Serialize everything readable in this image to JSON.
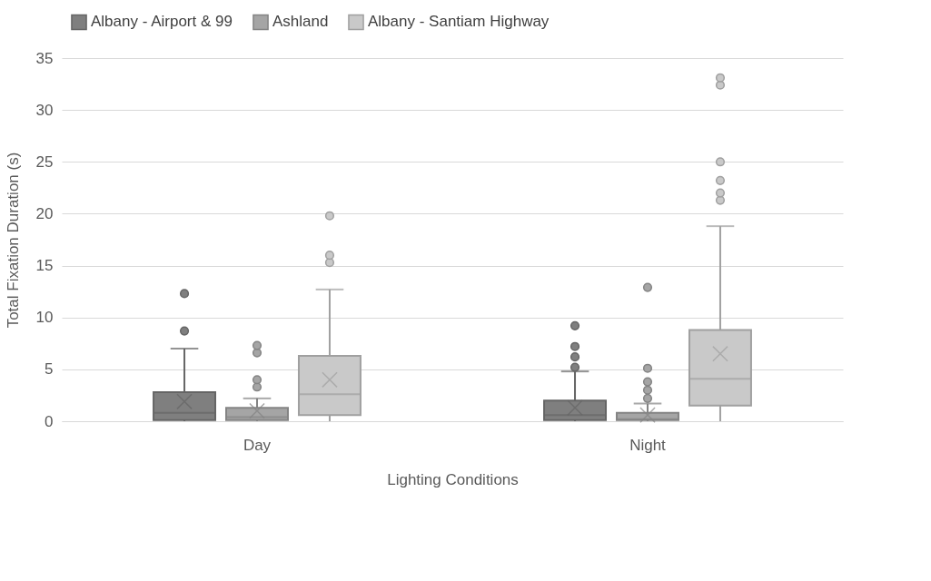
{
  "chart_data": {
    "type": "box",
    "xlabel": "Lighting Conditions",
    "ylabel": "Total Fixation Duration (s)",
    "categories": [
      "Day",
      "Night"
    ],
    "ylim": [
      0,
      35
    ],
    "yticks": [
      0,
      5,
      10,
      15,
      20,
      25,
      30,
      35
    ],
    "grid": "y",
    "legend": "top",
    "series": [
      {
        "name": "Albany - Airport & 99",
        "color": "#7f7f7f",
        "boxes": [
          {
            "low": 0,
            "q1": 0.1,
            "median": 0.8,
            "q3": 2.8,
            "high": 7.0,
            "mean": 1.9,
            "outliers": [
              8.7,
              12.3
            ]
          },
          {
            "low": 0,
            "q1": 0.1,
            "median": 0.6,
            "q3": 2.0,
            "high": 4.8,
            "mean": 1.3,
            "outliers": [
              5.2,
              6.2,
              7.2,
              9.2
            ]
          }
        ]
      },
      {
        "name": "Ashland",
        "color": "#a5a5a5",
        "boxes": [
          {
            "low": 0,
            "q1": 0.1,
            "median": 0.4,
            "q3": 1.3,
            "high": 2.2,
            "mean": 1.0,
            "outliers": [
              3.3,
              4.0,
              6.6,
              7.3
            ]
          },
          {
            "low": 0,
            "q1": 0.1,
            "median": 0.2,
            "q3": 0.8,
            "high": 1.7,
            "mean": 0.6,
            "outliers": [
              2.2,
              3.0,
              3.8,
              5.1,
              12.9
            ]
          }
        ]
      },
      {
        "name": "Albany - Santiam Highway",
        "color": "#c9c9c9",
        "boxes": [
          {
            "low": 0,
            "q1": 0.6,
            "median": 2.6,
            "q3": 6.3,
            "high": 12.7,
            "mean": 4.0,
            "outliers": [
              15.3,
              16.0,
              19.8
            ]
          },
          {
            "low": 0,
            "q1": 1.5,
            "median": 4.1,
            "q3": 8.8,
            "high": 18.8,
            "mean": 6.5,
            "outliers": [
              21.3,
              22.0,
              23.2,
              25.0,
              32.4,
              33.1
            ]
          }
        ]
      }
    ]
  }
}
